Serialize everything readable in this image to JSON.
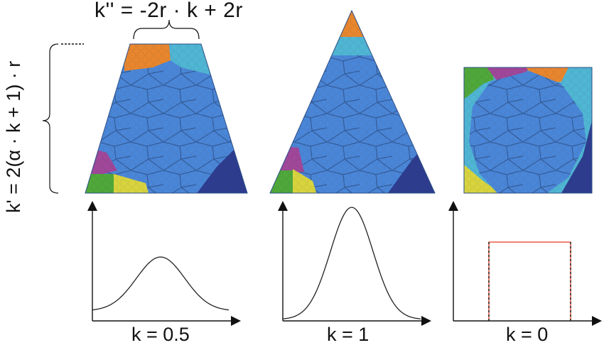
{
  "formulas": {
    "top": "k'' = -2r · k + 2r",
    "left": "k' = 2(α · k + 1) · r"
  },
  "panels": [
    {
      "shape": "trapezoid",
      "label": "k = 0.5",
      "distribution": "gaussian",
      "k": 0.5
    },
    {
      "shape": "triangle",
      "label": "k = 1",
      "distribution": "gaussian",
      "k": 1
    },
    {
      "shape": "square",
      "label": "k = 0",
      "distribution": "uniform",
      "k": 0
    }
  ],
  "colors": {
    "main_region": "#4a86d8",
    "cell_line": "#2c4f86",
    "orange": "#e8862e",
    "cyan": "#4fb6d4",
    "navy": "#2d3c8f",
    "magenta": "#a0479a",
    "green": "#4fa83a",
    "yellow": "#d8d43e",
    "curve": "#222222",
    "uniform_red": "#e03a1e"
  }
}
